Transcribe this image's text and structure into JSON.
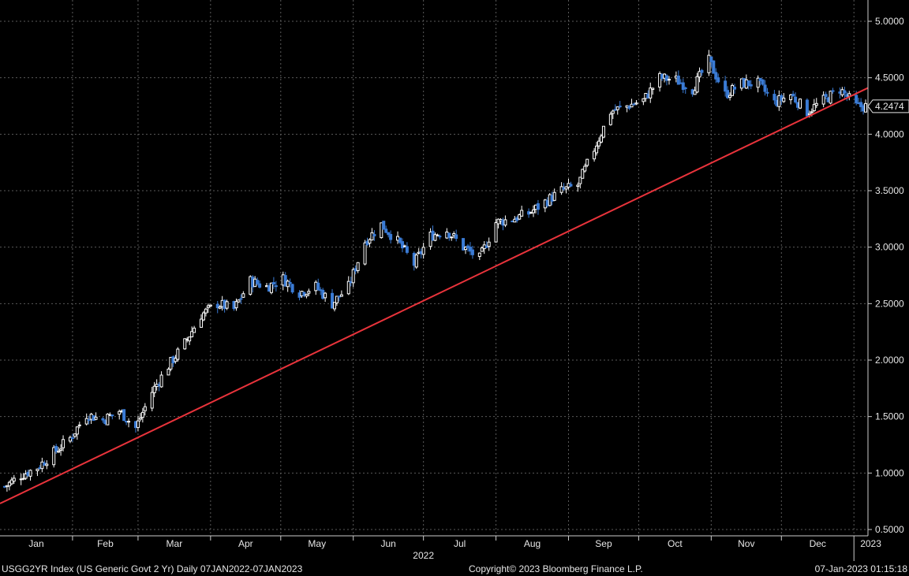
{
  "colors": {
    "background": "#000000",
    "grid": "#5a5a5a",
    "up_candle": "#ffffff",
    "down_candle": "#3a7bd5",
    "trendline": "#e8333b"
  },
  "chart_data": {
    "type": "candlestick",
    "title": "",
    "xlabel": "",
    "ylabel": "",
    "ylim": [
      0.45,
      5.1
    ],
    "y_ticks": [
      "5.0000",
      "4.5000",
      "4.0000",
      "3.5000",
      "3.0000",
      "2.5000",
      "2.0000",
      "1.5000",
      "1.0000",
      "0.5000"
    ],
    "y_tick_values": [
      5.0,
      4.5,
      4.0,
      3.5,
      3.0,
      2.5,
      2.0,
      1.5,
      1.0,
      0.5
    ],
    "x_tick_labels": [
      "Jan",
      "Feb",
      "Mar",
      "Apr",
      "May",
      "Jun",
      "Jul",
      "Aug",
      "Sep",
      "Oct",
      "Nov",
      "Dec",
      "2023"
    ],
    "year_label": "2022",
    "last_value": "4.2474",
    "grid": true,
    "trendline": {
      "from": {
        "date": "2022-01-01",
        "value": 0.73
      },
      "to": {
        "date": "2023-01-07",
        "value": 4.41
      }
    },
    "weekly_closes": [
      {
        "week": "2022-01-03",
        "value": 0.88
      },
      {
        "week": "2022-01-10",
        "value": 0.98
      },
      {
        "week": "2022-01-17",
        "value": 1.05
      },
      {
        "week": "2022-01-24",
        "value": 1.18
      },
      {
        "week": "2022-01-31",
        "value": 1.31
      },
      {
        "week": "2022-02-07",
        "value": 1.52
      },
      {
        "week": "2022-02-14",
        "value": 1.47
      },
      {
        "week": "2022-02-21",
        "value": 1.55
      },
      {
        "week": "2022-02-28",
        "value": 1.4
      },
      {
        "week": "2022-03-07",
        "value": 1.72
      },
      {
        "week": "2022-03-14",
        "value": 1.95
      },
      {
        "week": "2022-03-21",
        "value": 2.15
      },
      {
        "week": "2022-03-28",
        "value": 2.4
      },
      {
        "week": "2022-04-04",
        "value": 2.5
      },
      {
        "week": "2022-04-11",
        "value": 2.45
      },
      {
        "week": "2022-04-18",
        "value": 2.7
      },
      {
        "week": "2022-04-25",
        "value": 2.65
      },
      {
        "week": "2022-05-02",
        "value": 2.72
      },
      {
        "week": "2022-05-09",
        "value": 2.6
      },
      {
        "week": "2022-05-16",
        "value": 2.65
      },
      {
        "week": "2022-05-23",
        "value": 2.5
      },
      {
        "week": "2022-05-30",
        "value": 2.65
      },
      {
        "week": "2022-06-06",
        "value": 3.05
      },
      {
        "week": "2022-06-13",
        "value": 3.2
      },
      {
        "week": "2022-06-20",
        "value": 3.05
      },
      {
        "week": "2022-06-27",
        "value": 2.85
      },
      {
        "week": "2022-07-04",
        "value": 3.1
      },
      {
        "week": "2022-07-11",
        "value": 3.15
      },
      {
        "week": "2022-07-18",
        "value": 3.0
      },
      {
        "week": "2022-07-25",
        "value": 2.9
      },
      {
        "week": "2022-08-01",
        "value": 3.22
      },
      {
        "week": "2022-08-08",
        "value": 3.25
      },
      {
        "week": "2022-08-15",
        "value": 3.3
      },
      {
        "week": "2022-08-22",
        "value": 3.4
      },
      {
        "week": "2022-08-29",
        "value": 3.5
      },
      {
        "week": "2022-09-05",
        "value": 3.55
      },
      {
        "week": "2022-09-12",
        "value": 3.87
      },
      {
        "week": "2022-09-19",
        "value": 4.2
      },
      {
        "week": "2022-09-26",
        "value": 4.25
      },
      {
        "week": "2022-10-03",
        "value": 4.3
      },
      {
        "week": "2022-10-10",
        "value": 4.5
      },
      {
        "week": "2022-10-17",
        "value": 4.48
      },
      {
        "week": "2022-10-24",
        "value": 4.4
      },
      {
        "week": "2022-10-31",
        "value": 4.65
      },
      {
        "week": "2022-11-07",
        "value": 4.35
      },
      {
        "week": "2022-11-14",
        "value": 4.45
      },
      {
        "week": "2022-11-21",
        "value": 4.45
      },
      {
        "week": "2022-11-28",
        "value": 4.28
      },
      {
        "week": "2022-12-05",
        "value": 4.35
      },
      {
        "week": "2022-12-12",
        "value": 4.2
      },
      {
        "week": "2022-12-19",
        "value": 4.3
      },
      {
        "week": "2022-12-26",
        "value": 4.4
      },
      {
        "week": "2023-01-02",
        "value": 4.2474
      }
    ]
  },
  "footer": {
    "ticker": "USGG2YR Index (US Generic Govt 2 Yr)  Daily 07JAN2022-07JAN2023",
    "copyright": "Copyright© 2023 Bloomberg Finance L.P.",
    "timestamp": "07-Jan-2023 01:15:18"
  }
}
